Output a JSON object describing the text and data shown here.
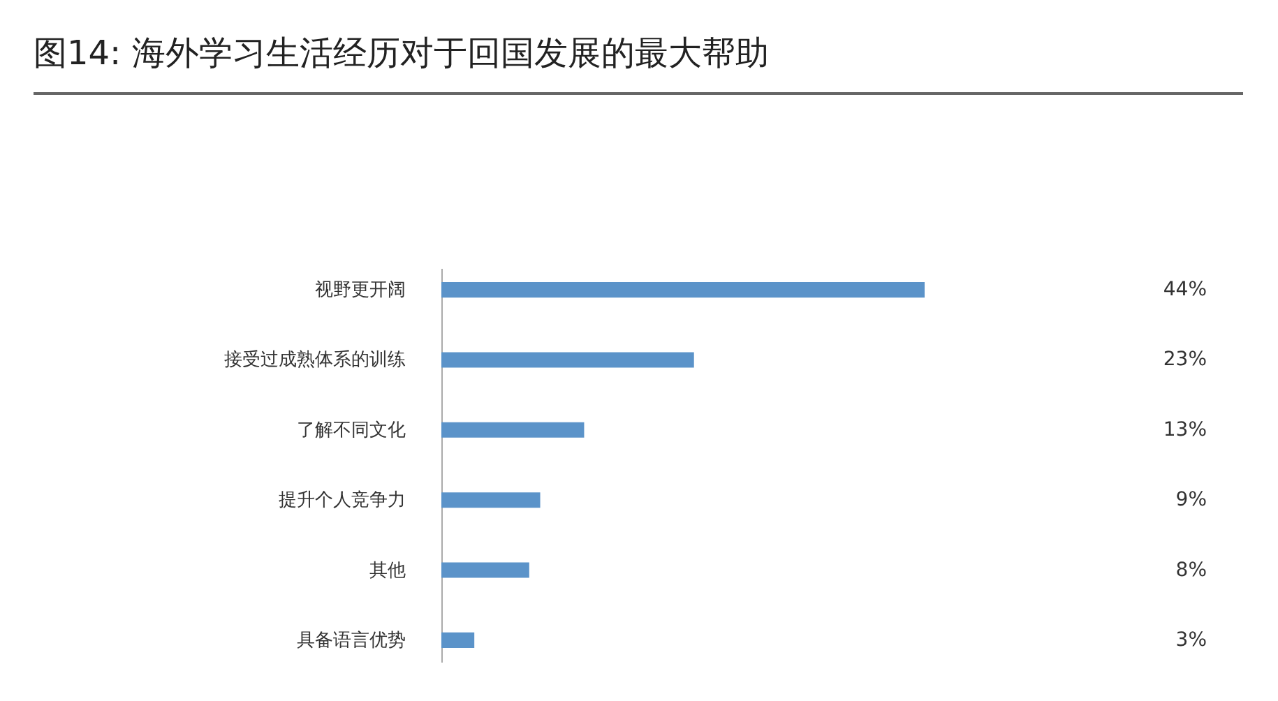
{
  "chart_data": {
    "type": "bar",
    "orientation": "horizontal",
    "title": "图14: 海外学习生活经历对于回国发展的最大帮助",
    "categories": [
      "视野更开阔",
      "接受过成熟体系的训练",
      "了解不同文化",
      "提升个人竞争力",
      "其他",
      "具备语言优势"
    ],
    "values": [
      44,
      23,
      13,
      9,
      8,
      3
    ],
    "value_labels": [
      "44%",
      "23%",
      "13%",
      "9%",
      "8%",
      "3%"
    ],
    "color": "#5b93c9"
  }
}
